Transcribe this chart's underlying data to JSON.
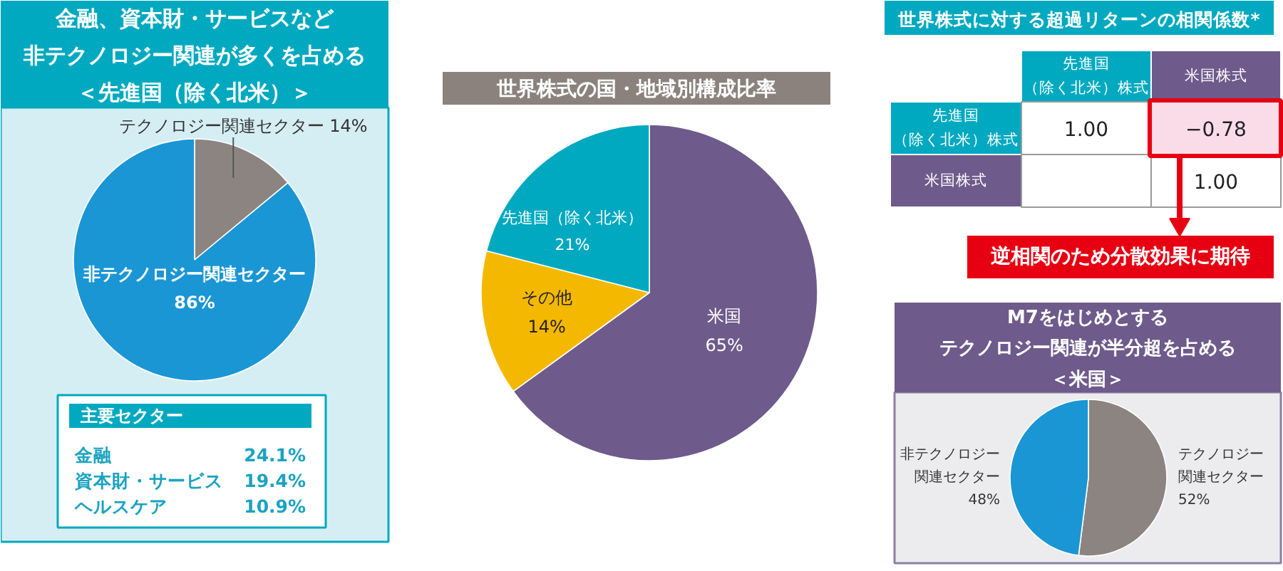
{
  "chart_data": [
    {
      "type": "pie",
      "title": "金融、資本財・サービスなど非テクノロジー関連が多くを占める＜先進国（除く北米）＞",
      "categories": [
        "テクノロジー関連セクター",
        "非テクノロジー関連セクター"
      ],
      "values": [
        14,
        86
      ],
      "colors": [
        "#8c8480",
        "#1a96d4"
      ],
      "value_labels": [
        "14%",
        "86%"
      ],
      "annotations": [
        "主要セクター",
        "金融",
        "24.1%",
        "資本財・サービス",
        "19.4%",
        "ヘルスケア",
        "10.9%"
      ]
    },
    {
      "type": "pie",
      "title": "世界株式の国・地域別構成比率",
      "categories": [
        "米国",
        "その他",
        "先進国（除く北米）"
      ],
      "values": [
        65,
        14,
        21
      ],
      "colors": [
        "#6e5a8b",
        "#f5b800",
        "#00a9bf"
      ],
      "value_labels": [
        "65%",
        "14%",
        "21%"
      ]
    },
    {
      "type": "heatmap",
      "title": "世界株式に対する超過リターンの相関係数*",
      "categories": [
        "先進国（除く北米）株式",
        "米国株式"
      ],
      "y_categories": [
        "先進国（除く北米）株式",
        "米国株式"
      ],
      "cells": [
        [
          1.0,
          -0.78
        ],
        [
          null,
          1.0
        ]
      ],
      "cell_labels": [
        [
          "1.00",
          "−0.78"
        ],
        [
          null,
          "1.00"
        ]
      ],
      "annotations": [
        "逆相関のため分散効果に期待"
      ]
    },
    {
      "type": "pie",
      "title": "M7をはじめとするテクノロジー関連が半分超を占める＜米国＞",
      "categories": [
        "テクノロジー関連セクター",
        "非テクノロジー関連セクター"
      ],
      "values": [
        52,
        48
      ],
      "colors": [
        "#8c8480",
        "#1a96d4"
      ],
      "value_labels": [
        "52%",
        "48%"
      ]
    }
  ]
}
